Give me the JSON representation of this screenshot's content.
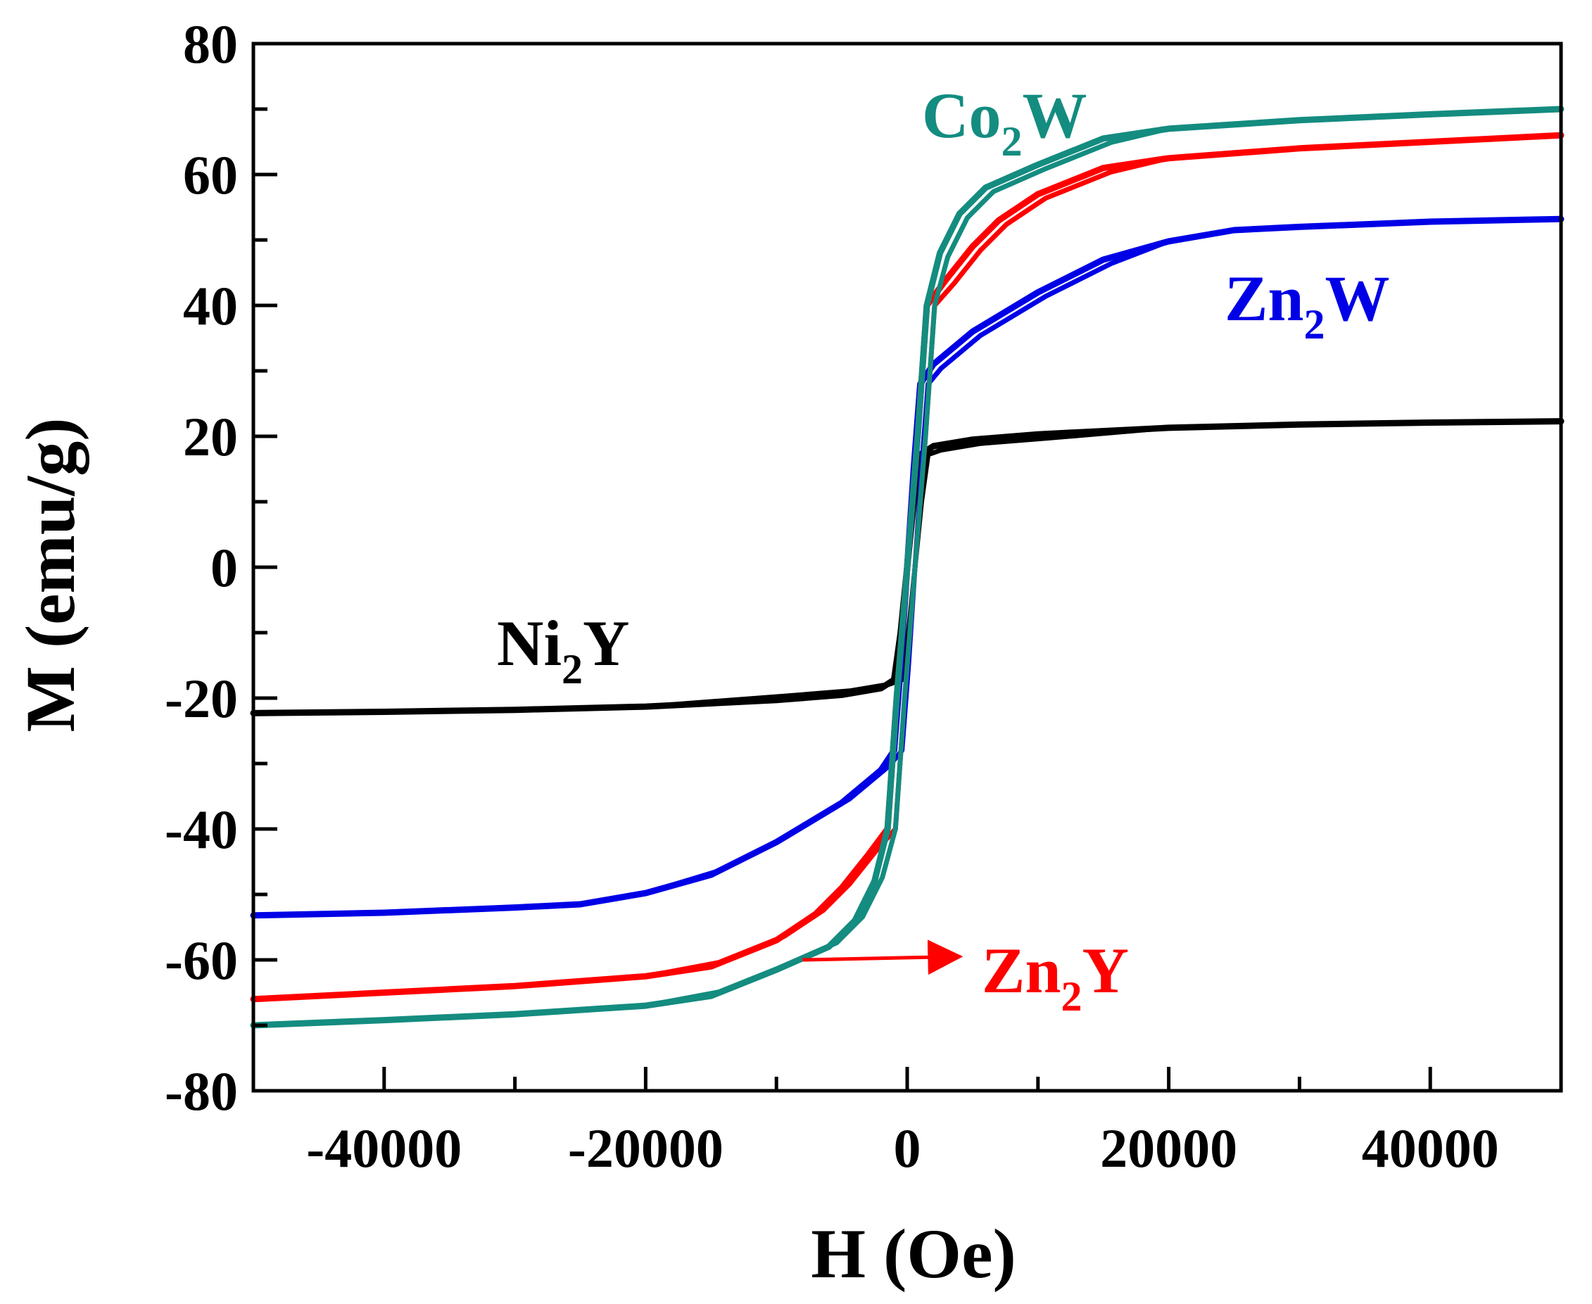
{
  "chart_data": {
    "type": "line",
    "title": "",
    "xlabel": "H (Oe)",
    "ylabel": "M (emu/g)",
    "xlim": [
      -50000,
      50000
    ],
    "ylim": [
      -80,
      80
    ],
    "x_ticks": [
      -40000,
      -20000,
      0,
      20000,
      40000
    ],
    "x_tick_labels": [
      "-40000",
      "-20000",
      "0",
      "20000",
      "40000"
    ],
    "y_ticks": [
      -80,
      -60,
      -40,
      -20,
      0,
      20,
      40,
      60,
      80
    ],
    "y_tick_labels": [
      "-80",
      "-60",
      "-40",
      "-20",
      "0",
      "20",
      "40",
      "60",
      "80"
    ],
    "grid": false,
    "series": [
      {
        "name": "Ni2Y",
        "label_main": "Ni",
        "label_sub": "2",
        "label_tail": "Y",
        "color": "#000000",
        "x": [
          -50000,
          -40000,
          -30000,
          -20000,
          -10000,
          -5000,
          -2000,
          -1000,
          -500,
          0,
          500,
          1000,
          2000,
          5000,
          10000,
          20000,
          30000,
          40000,
          50000
        ],
        "y": [
          -22.3,
          -22.1,
          -21.8,
          -21.3,
          -20.3,
          -19.5,
          -18.5,
          -17.2,
          -10,
          0,
          10,
          17.2,
          18.5,
          19.5,
          20.3,
          21.3,
          21.8,
          22.1,
          22.3
        ]
      },
      {
        "name": "Zn2W",
        "label_main": "Zn",
        "label_sub": "2",
        "label_tail": "W",
        "color": "#0000e6",
        "x": [
          -50000,
          -40000,
          -30000,
          -25000,
          -20000,
          -15000,
          -10000,
          -5000,
          -2000,
          -1000,
          -500,
          0,
          500,
          1000,
          2000,
          5000,
          10000,
          15000,
          20000,
          25000,
          30000,
          40000,
          50000
        ],
        "y": [
          -53.2,
          -52.8,
          -52,
          -51.5,
          -49.8,
          -47,
          -42,
          -36,
          -31,
          -28,
          -15,
          0,
          15,
          28,
          31,
          36,
          42,
          47,
          49.8,
          51.5,
          52,
          52.8,
          53.2
        ]
      },
      {
        "name": "Zn2Y",
        "label_main": "Zn",
        "label_sub": "2",
        "label_tail": "Y",
        "color": "#ff0000",
        "x": [
          -50000,
          -40000,
          -30000,
          -20000,
          -15000,
          -10000,
          -7000,
          -5000,
          -3000,
          -1500,
          -800,
          0,
          800,
          1500,
          3000,
          5000,
          7000,
          10000,
          15000,
          20000,
          30000,
          40000,
          50000
        ],
        "y": [
          -66,
          -65,
          -64,
          -62.5,
          -61,
          -57,
          -53,
          -49,
          -44,
          -40,
          -20,
          0,
          20,
          40,
          44,
          49,
          53,
          57,
          61,
          62.5,
          64,
          65,
          66
        ]
      },
      {
        "name": "Co2W",
        "label_main": "Co",
        "label_sub": "2",
        "label_tail": "W",
        "color": "#148c80",
        "x": [
          -50000,
          -40000,
          -30000,
          -20000,
          -15000,
          -10000,
          -6000,
          -4000,
          -2500,
          -1500,
          -800,
          0,
          800,
          1500,
          2500,
          4000,
          6000,
          10000,
          15000,
          20000,
          30000,
          40000,
          50000
        ],
        "y": [
          -70,
          -69.2,
          -68.3,
          -67,
          -65.5,
          -61.5,
          -58,
          -54,
          -48,
          -40,
          -20,
          0,
          20,
          40,
          48,
          54,
          58,
          61.5,
          65.5,
          67,
          68.3,
          69.2,
          70
        ]
      }
    ],
    "annotations": [
      {
        "type": "arrow",
        "from": [
          -8000,
          -60
        ],
        "to": [
          4000,
          -59.5
        ],
        "color": "#ff0000",
        "points_to": "Zn2Y"
      }
    ]
  }
}
